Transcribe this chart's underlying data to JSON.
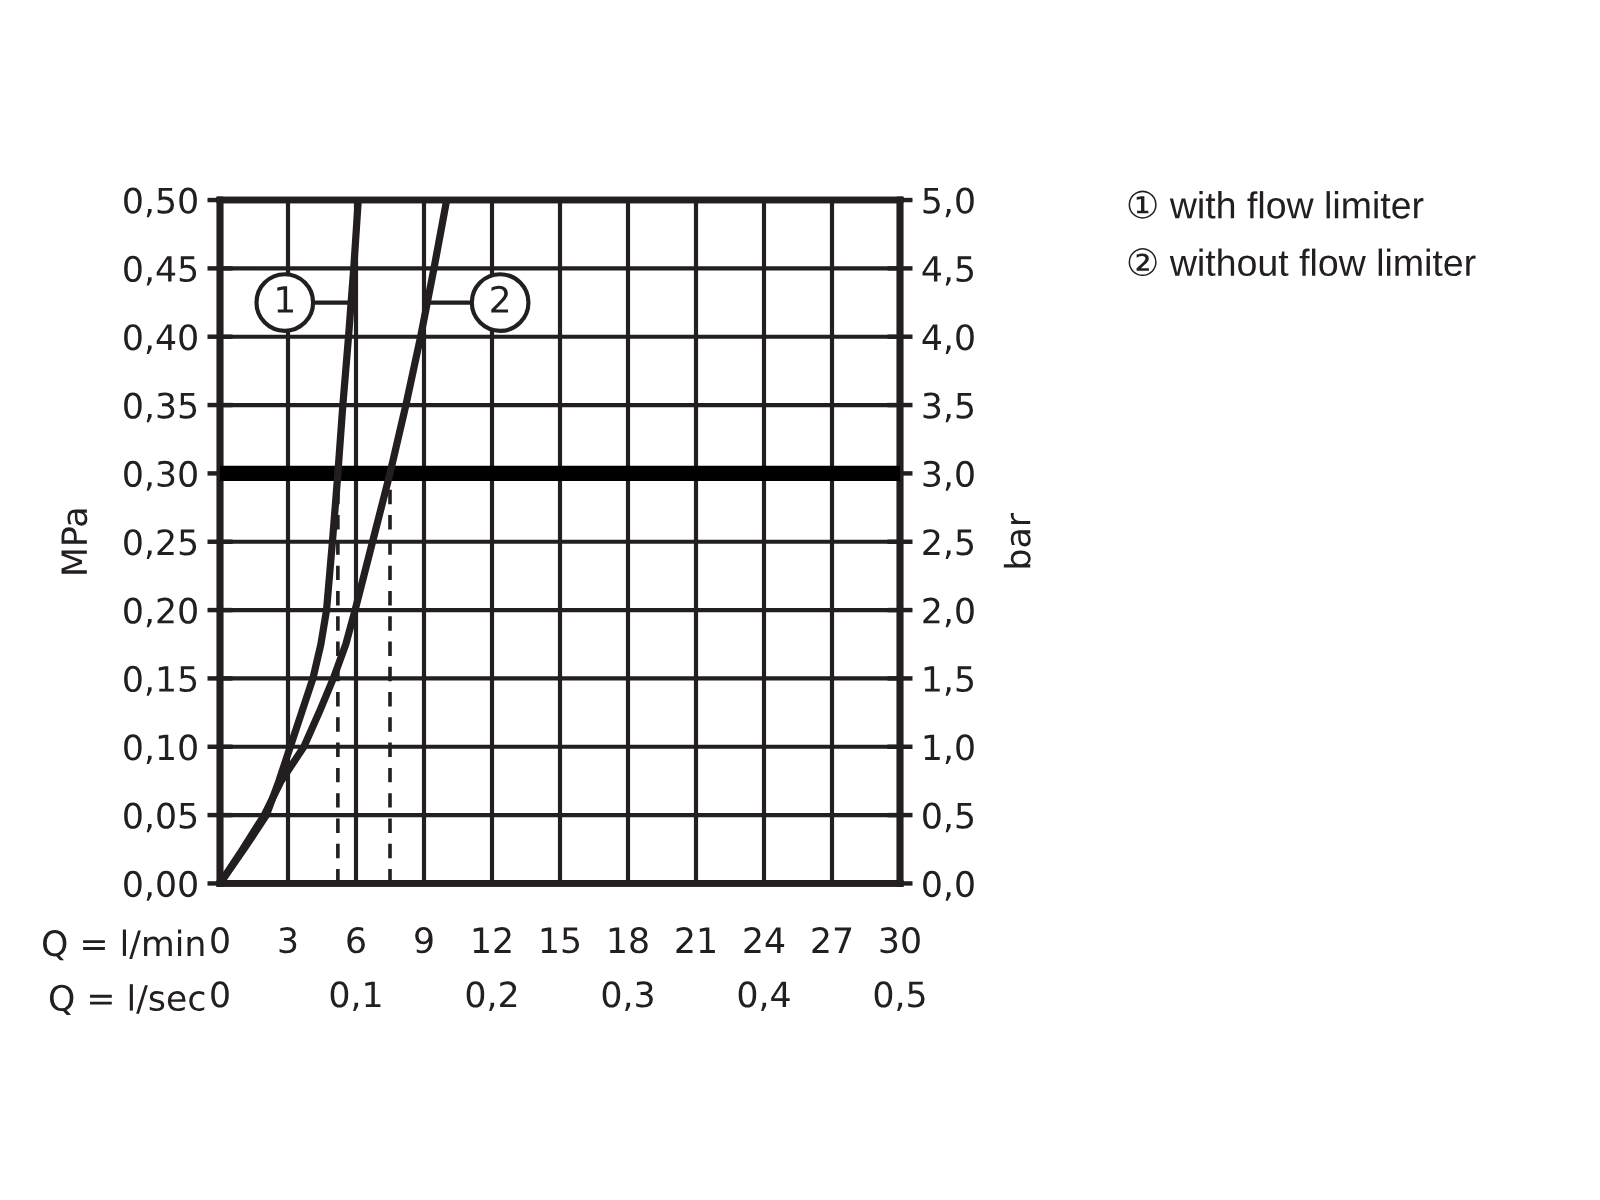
{
  "chart_data": {
    "type": "line",
    "xlabel": "Q = l/min",
    "x2label": "Q = l/sec",
    "ylabel": "MPa",
    "y2label": "bar",
    "xlim": [
      0,
      30
    ],
    "xticks": [
      0,
      3,
      6,
      9,
      12,
      15,
      18,
      21,
      24,
      27,
      30
    ],
    "x2lim": [
      0,
      0.5
    ],
    "x2ticks": [
      0,
      {
        "value": 0.1,
        "label": "0,1"
      },
      {
        "value": 0.2,
        "label": "0,2"
      },
      {
        "value": 0.3,
        "label": "0,3"
      },
      {
        "value": 0.4,
        "label": "0,4"
      },
      {
        "value": 0.5,
        "label": "0,5"
      }
    ],
    "ylim": [
      0,
      0.5
    ],
    "yticks": [
      {
        "value": 0,
        "label": "0,00"
      },
      {
        "value": 0.05,
        "label": "0,05"
      },
      {
        "value": 0.1,
        "label": "0,10"
      },
      {
        "value": 0.15,
        "label": "0,15"
      },
      {
        "value": 0.2,
        "label": "0,20"
      },
      {
        "value": 0.25,
        "label": "0,25"
      },
      {
        "value": 0.3,
        "label": "0,30"
      },
      {
        "value": 0.35,
        "label": "0,35"
      },
      {
        "value": 0.4,
        "label": "0,40"
      },
      {
        "value": 0.45,
        "label": "0,45"
      },
      {
        "value": 0.5,
        "label": "0,50"
      }
    ],
    "y2lim": [
      0,
      5
    ],
    "y2ticks": [
      {
        "value": 0,
        "label": "0,0"
      },
      {
        "value": 0.5,
        "label": "0,5"
      },
      {
        "value": 1,
        "label": "1,0"
      },
      {
        "value": 1.5,
        "label": "1,5"
      },
      {
        "value": 2,
        "label": "2,0"
      },
      {
        "value": 2.5,
        "label": "2,5"
      },
      {
        "value": 3,
        "label": "3,0"
      },
      {
        "value": 3.5,
        "label": "3,5"
      },
      {
        "value": 4,
        "label": "4,0"
      },
      {
        "value": 4.5,
        "label": "4,5"
      },
      {
        "value": 5,
        "label": "5,0"
      }
    ],
    "series": [
      {
        "name": "① with flow limiter",
        "color": "#231f20",
        "x": [
          0,
          1.05,
          2.05,
          2.6,
          3.1,
          3.6,
          4.1,
          4.45,
          4.7,
          4.96,
          5.2,
          5.42,
          5.67,
          5.9,
          6.1
        ],
        "values": [
          0,
          0.025,
          0.05,
          0.075,
          0.1,
          0.125,
          0.15,
          0.175,
          0.2,
          0.25,
          0.3,
          0.35,
          0.4,
          0.45,
          0.5
        ]
      },
      {
        "name": "② without flow limiter",
        "color": "#231f20",
        "x": [
          0,
          1.0,
          1.95,
          2.7,
          3.7,
          4.37,
          5.0,
          5.55,
          5.96,
          6.73,
          7.5,
          8.2,
          8.85,
          9.44,
          10.0
        ],
        "values": [
          0,
          0.025,
          0.05,
          0.075,
          0.1,
          0.125,
          0.15,
          0.175,
          0.2,
          0.25,
          0.3,
          0.35,
          0.4,
          0.45,
          0.5
        ]
      }
    ],
    "ref_lines": [
      {
        "axis": "y",
        "value": 0.3,
        "color": "#000000"
      },
      {
        "axis": "x",
        "value": 5.2,
        "color": "#231f20",
        "line_style": "dashed"
      },
      {
        "axis": "x",
        "value": 7.5,
        "color": "#231f20",
        "line_style": "dashed"
      }
    ],
    "annotations": [
      {
        "text": "1",
        "x": 5.8,
        "y": 0.425
      },
      {
        "text": "2",
        "x": 9.05,
        "y": 0.425
      }
    ],
    "grid": true,
    "legend": "top right",
    "marker": "none",
    "line_style": "solid"
  }
}
